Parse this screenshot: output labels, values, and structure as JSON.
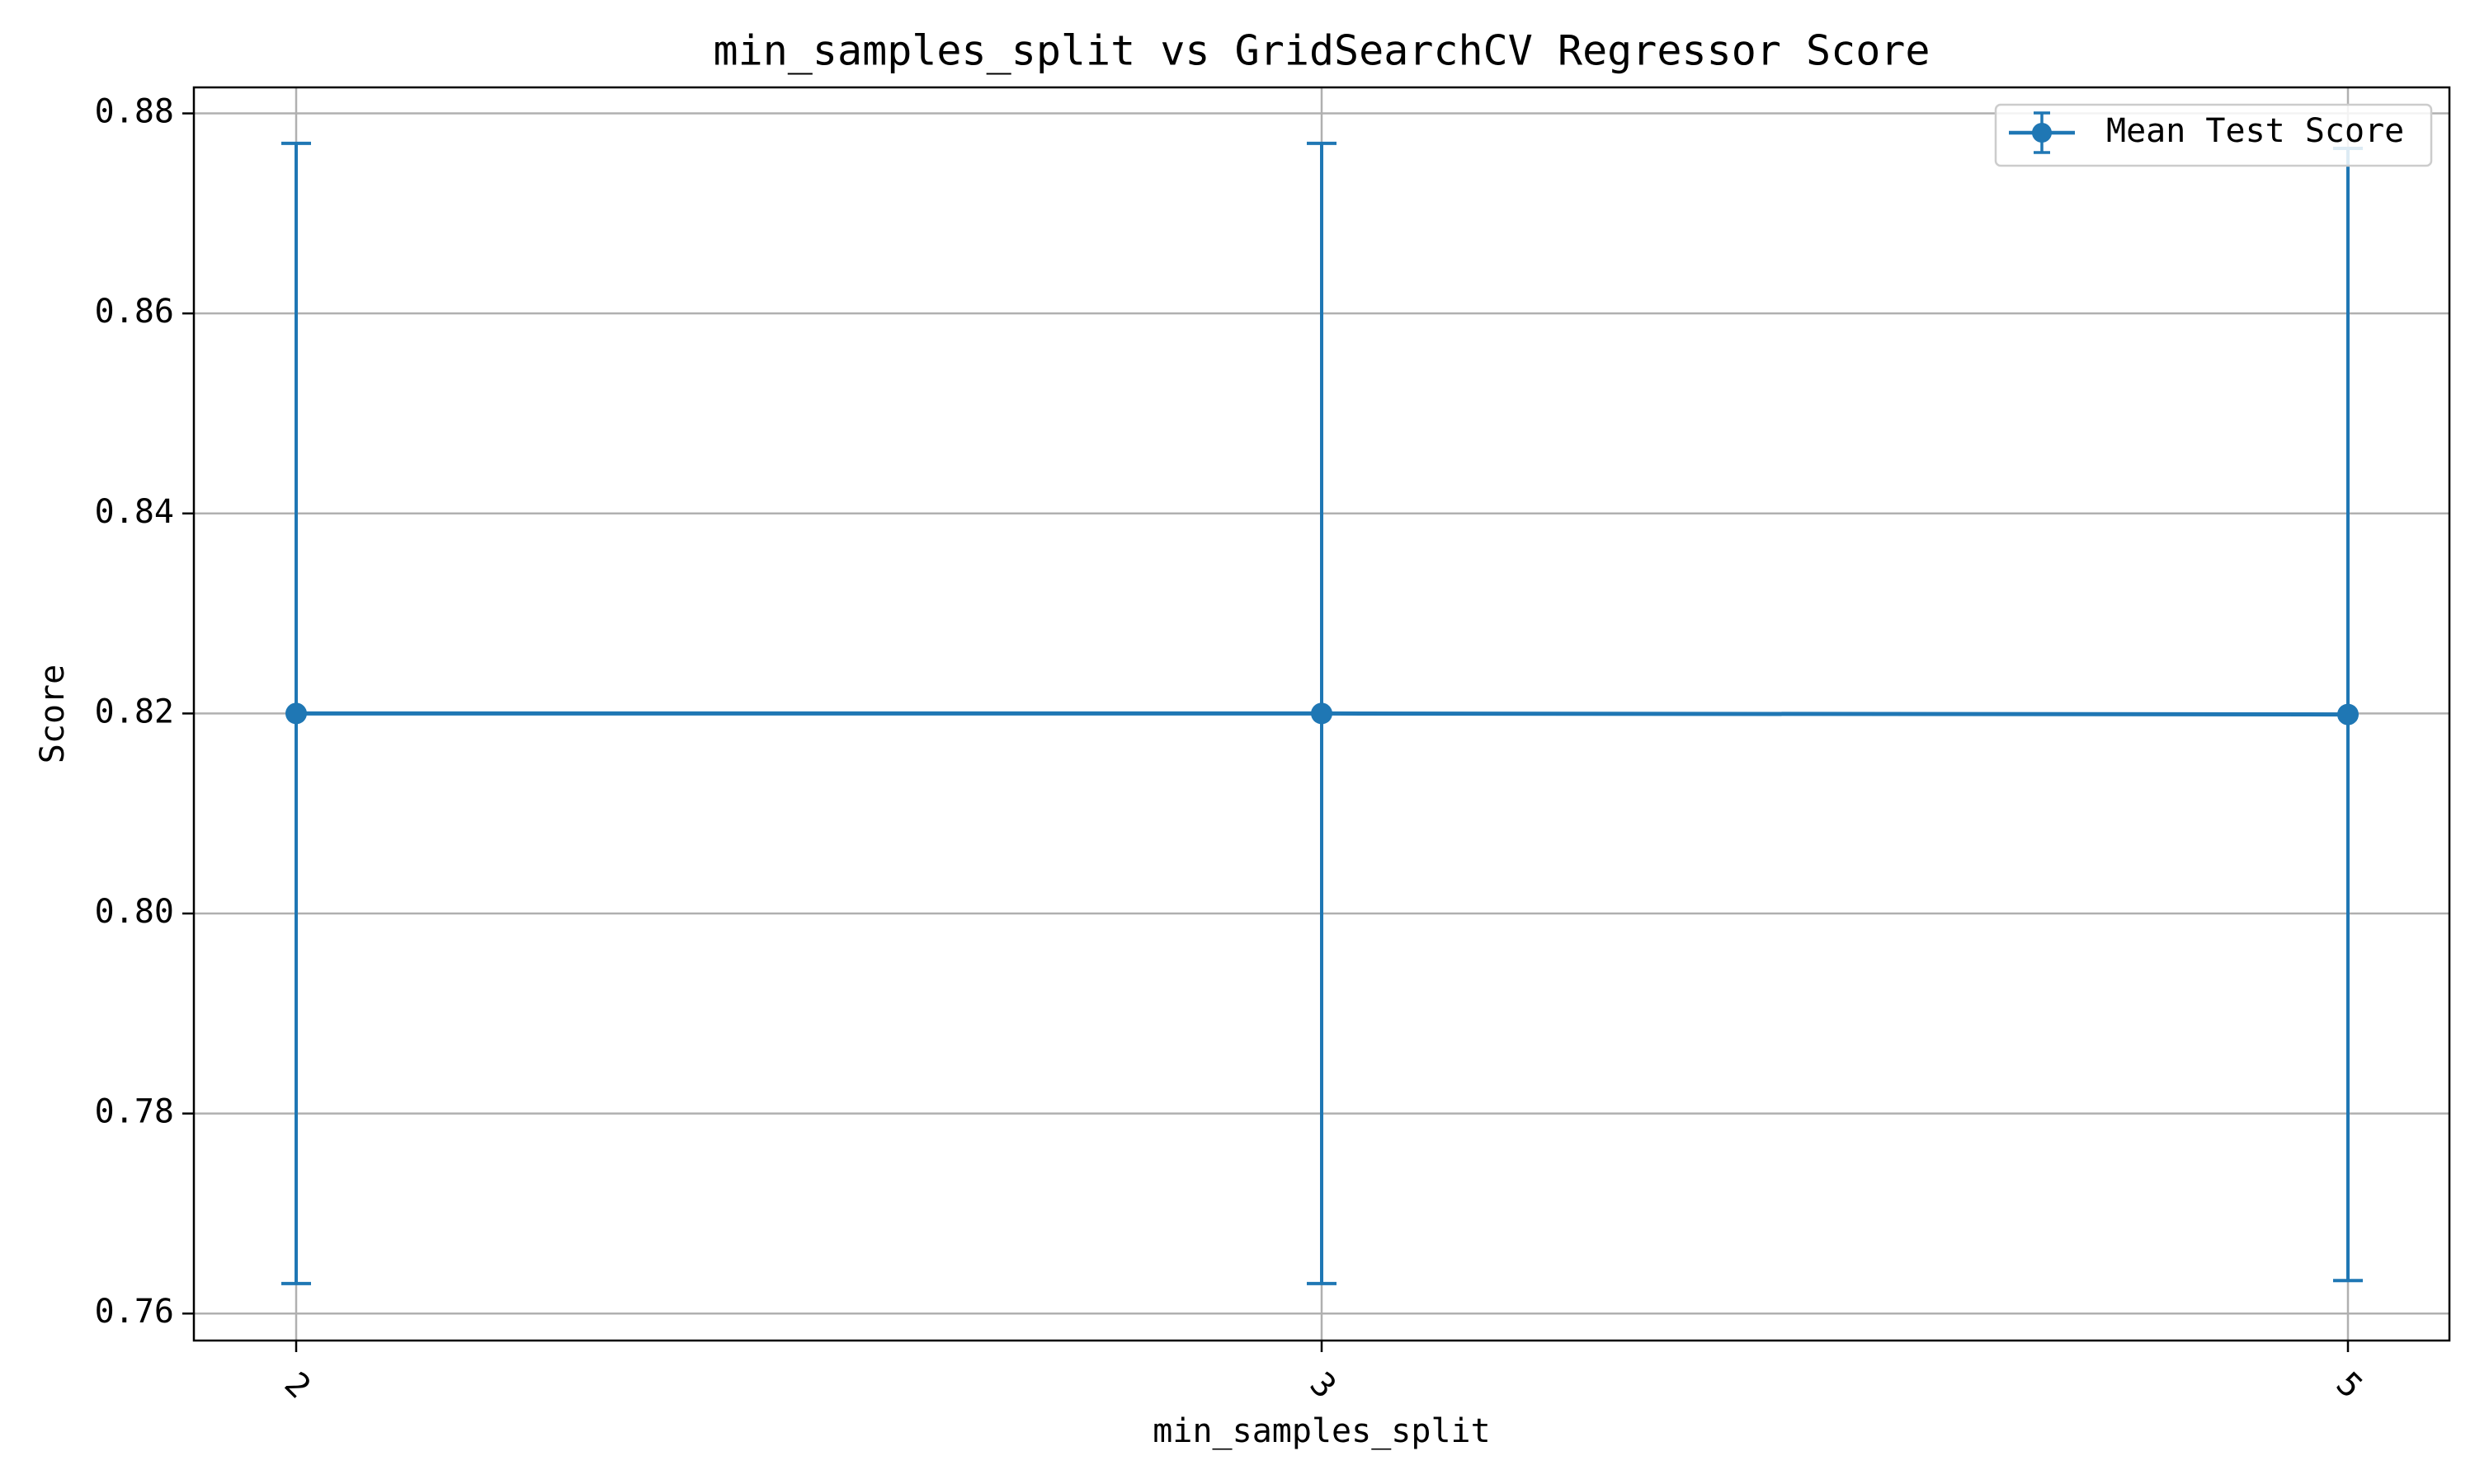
{
  "chart_data": {
    "type": "line",
    "title": "min_samples_split vs GridSearchCV Regressor Score",
    "xlabel": "min_samples_split",
    "ylabel": "Score",
    "categories": [
      "2",
      "3",
      "5"
    ],
    "series": [
      {
        "name": "Mean Test Score",
        "values": [
          0.82,
          0.82,
          0.8199
        ],
        "error": [
          0.057,
          0.057,
          0.0566
        ]
      }
    ],
    "ylim": [
      0.7573,
      0.8826
    ],
    "yticks": [
      0.76,
      0.78,
      0.8,
      0.82,
      0.84,
      0.86,
      0.88
    ],
    "ytick_labels": [
      "0.76",
      "0.78",
      "0.80",
      "0.82",
      "0.84",
      "0.86",
      "0.88"
    ],
    "xtick_rotation_deg": 45,
    "grid": true,
    "legend_position": "top-right",
    "colors": {
      "series": "#1f77b4",
      "grid": "#b0b0b0",
      "axes": "#000000",
      "background": "#ffffff"
    }
  }
}
